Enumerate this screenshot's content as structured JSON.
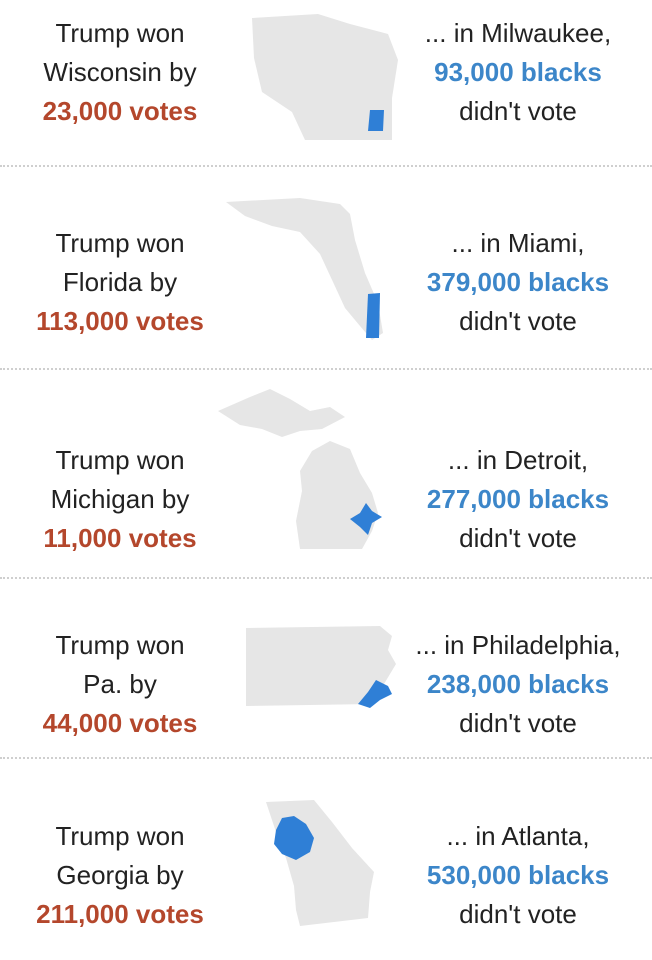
{
  "colors": {
    "state_fill": "#e6e6e6",
    "city_fill": "#2f7fd6",
    "margin_text": "#b4472c",
    "count_text": "#3c86c9",
    "body_text": "#222222"
  },
  "rows": [
    {
      "state_line_1": "Trump won",
      "state_line_2": "Wisconsin by",
      "margin": "23,000 votes",
      "city_line": "... in Milwaukee,",
      "count": "93,000 blacks",
      "tail": "didn't vote",
      "map_icon": "wisconsin-state-map"
    },
    {
      "state_line_1": "Trump won",
      "state_line_2": "Florida by",
      "margin": "113,000 votes",
      "city_line": "... in Miami,",
      "count": "379,000 blacks",
      "tail": "didn't vote",
      "map_icon": "florida-state-map"
    },
    {
      "state_line_1": "Trump won",
      "state_line_2": "Michigan by",
      "margin": "11,000 votes",
      "city_line": "... in Detroit,",
      "count": "277,000 blacks",
      "tail": "didn't vote",
      "map_icon": "michigan-state-map"
    },
    {
      "state_line_1": "Trump won",
      "state_line_2": "Pa. by",
      "margin": "44,000 votes",
      "city_line": "... in Philadelphia,",
      "count": "238,000 blacks",
      "tail": "didn't vote",
      "map_icon": "pennsylvania-state-map"
    },
    {
      "state_line_1": "Trump won",
      "state_line_2": "Georgia by",
      "margin": "211,000 votes",
      "city_line": "... in Atlanta,",
      "count": "530,000 blacks",
      "tail": "didn't vote",
      "map_icon": "georgia-state-map"
    }
  ]
}
